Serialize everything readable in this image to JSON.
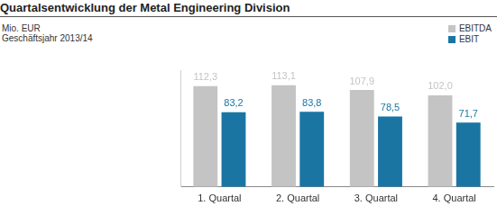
{
  "chart_data": {
    "type": "bar",
    "title": "Quartalsentwicklung der Metal Engineering Division",
    "subtitle": [
      "Mio. EUR",
      "Geschäftsjahr 2013/14"
    ],
    "categories": [
      "1. Quartal",
      "2. Quartal",
      "3. Quartal",
      "4. Quartal"
    ],
    "series": [
      {
        "name": "EBITDA",
        "color": "#c4c4c4",
        "values": [
          112.3,
          113.1,
          107.9,
          102.0
        ],
        "value_labels": [
          "112,3",
          "113,1",
          "107,9",
          "102,0"
        ]
      },
      {
        "name": "EBIT",
        "color": "#1b75a3",
        "values": [
          83.2,
          83.8,
          78.5,
          71.7
        ],
        "value_labels": [
          "83,2",
          "83,8",
          "78,5",
          "71,7"
        ]
      }
    ],
    "ylim": [
      0,
      130
    ],
    "grid": false,
    "legend": "top-right",
    "data_labels": true,
    "tick_labels": "x"
  }
}
